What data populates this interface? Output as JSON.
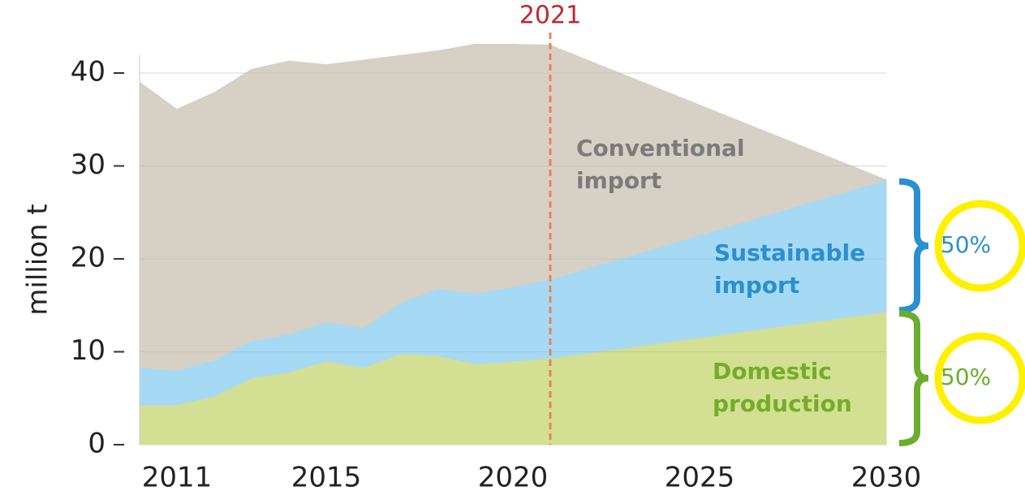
{
  "chart_data": {
    "type": "stacked_area",
    "y_label": "million t",
    "x": [
      2010,
      2011,
      2012,
      2013,
      2014,
      2015,
      2016,
      2017,
      2018,
      2019,
      2020,
      2021,
      2030
    ],
    "series": [
      {
        "name": "Domestic production",
        "color": "#d3df92",
        "label_color": "#74ad2a",
        "values": [
          4.3,
          4.3,
          5.2,
          7.2,
          7.8,
          9.0,
          8.3,
          9.8,
          9.6,
          8.7,
          9.0,
          9.3,
          14.3
        ]
      },
      {
        "name": "Sustainable import",
        "color": "#a6d9f4",
        "label_color": "#2a8fd0",
        "values": [
          4.0,
          3.7,
          3.9,
          4.0,
          4.1,
          4.2,
          4.3,
          5.5,
          7.2,
          7.6,
          8.0,
          8.5,
          14.2
        ]
      },
      {
        "name": "Conventional import",
        "color": "#d7d0c5",
        "label_color": "#7b7b7b",
        "values": [
          30.7,
          28.1,
          28.8,
          29.2,
          29.4,
          27.7,
          28.8,
          26.6,
          25.6,
          26.8,
          26.1,
          25.2,
          0.0
        ]
      }
    ],
    "marker": {
      "x": 2021,
      "color": "#e8825f",
      "label_color": "#c0272d"
    },
    "shares": [
      {
        "series": 1,
        "value": 50,
        "label": "50%",
        "color": "#2a8fd0"
      },
      {
        "series": 0,
        "value": 50,
        "label": "50%",
        "color": "#6aae2c"
      }
    ],
    "xlim": [
      2010,
      2030
    ],
    "xticks": [
      2011,
      2015,
      2020,
      2025,
      2030
    ],
    "ylim": [
      0,
      40
    ],
    "yticks": [
      0,
      10,
      20,
      30,
      40
    ],
    "grid": true
  }
}
